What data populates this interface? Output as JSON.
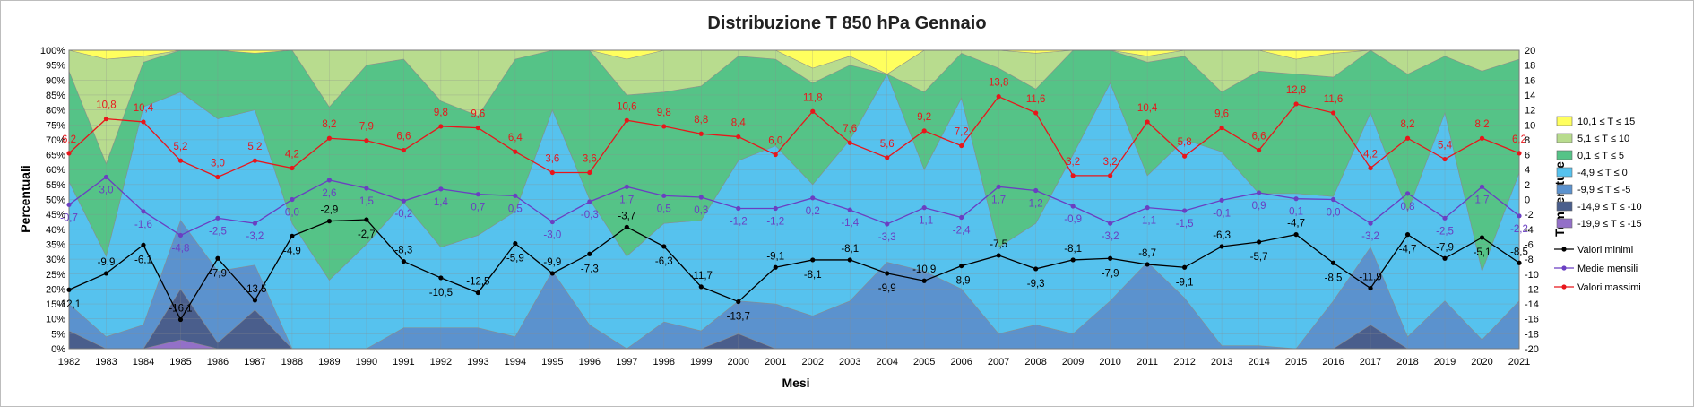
{
  "chart_data": {
    "type": "area",
    "title": "Distribuzione T 850 hPa Gennaio",
    "xlabel": "Mesi",
    "ylabel_left": "Percentuali",
    "ylabel_right": "Temperature",
    "categories": [
      "1982",
      "1983",
      "1984",
      "1985",
      "1986",
      "1987",
      "1988",
      "1989",
      "1990",
      "1991",
      "1992",
      "1993",
      "1994",
      "1995",
      "1996",
      "1997",
      "1998",
      "1999",
      "2000",
      "2001",
      "2002",
      "2003",
      "2004",
      "2005",
      "2006",
      "2007",
      "2008",
      "2009",
      "2010",
      "2011",
      "2012",
      "2013",
      "2014",
      "2015",
      "2016",
      "2017",
      "2018",
      "2019",
      "2020",
      "2021"
    ],
    "left_axis": {
      "min": 0,
      "max": 100,
      "step": 5,
      "unit": "%"
    },
    "right_axis": {
      "min": -20,
      "max": 20,
      "step": 2
    },
    "stacked_series": [
      {
        "name": "-19,9 ≤ T ≤ -15",
        "color": "#9370C8",
        "values": [
          0,
          0,
          0,
          3,
          0,
          0,
          0,
          0,
          0,
          0,
          0,
          0,
          0,
          0,
          0,
          0,
          0,
          0,
          0,
          0,
          0,
          0,
          0,
          0,
          0,
          0,
          0,
          0,
          0,
          0,
          0,
          0,
          0,
          0,
          0,
          0,
          0,
          0,
          0,
          0
        ]
      },
      {
        "name": "-14,9 ≤ T ≤ -10",
        "color": "#4A5E8C",
        "values": [
          6,
          0,
          0,
          17,
          2,
          13,
          0,
          0,
          0,
          0,
          0,
          0,
          0,
          0,
          0,
          0,
          0,
          0,
          5,
          0,
          0,
          0,
          0,
          0,
          0,
          0,
          0,
          0,
          0,
          0,
          0,
          0,
          0,
          0,
          0,
          8,
          0,
          0,
          0,
          0
        ]
      },
      {
        "name": "-9,9 ≤ T ≤ -5",
        "color": "#5B92CE",
        "values": [
          9,
          4,
          8,
          23,
          24,
          15,
          0,
          0,
          0,
          7,
          7,
          7,
          4,
          26,
          8,
          0,
          9,
          6,
          11,
          15,
          11,
          16,
          29,
          26,
          20,
          5,
          8,
          5,
          16,
          29,
          17,
          1,
          1,
          0,
          16,
          26,
          4,
          16,
          3,
          16
        ]
      },
      {
        "name": "-4,9 ≤ T ≤ 0",
        "color": "#56C2EE",
        "values": [
          41,
          27,
          73,
          43,
          51,
          52,
          42,
          23,
          35,
          42,
          27,
          31,
          42,
          54,
          42,
          31,
          33,
          37,
          47,
          53,
          44,
          54,
          63,
          34,
          64,
          29,
          34,
          60,
          73,
          29,
          53,
          65,
          51,
          52,
          35,
          45,
          42,
          63,
          23,
          43
        ]
      },
      {
        "name": "0,1 ≤ T ≤ 5",
        "color": "#55C387",
        "values": [
          37,
          31,
          15,
          33,
          23,
          19,
          58,
          58,
          60,
          48,
          49,
          40,
          51,
          20,
          50,
          54,
          44,
          45,
          35,
          29,
          34,
          25,
          0,
          26,
          15,
          60,
          45,
          35,
          11,
          38,
          28,
          20,
          41,
          40,
          40,
          21,
          46,
          19,
          67,
          38
        ]
      },
      {
        "name": "5,1 ≤ T ≤ 10",
        "color": "#B8DC8E",
        "values": [
          7,
          35,
          2,
          1,
          0,
          0,
          0,
          19,
          5,
          3,
          17,
          22,
          3,
          0,
          0,
          12,
          14,
          12,
          2,
          3,
          5,
          3,
          0,
          14,
          1,
          6,
          12,
          0,
          0,
          2,
          2,
          14,
          7,
          5,
          8,
          0,
          8,
          2,
          7,
          3
        ]
      },
      {
        "name": "10,1 ≤ T ≤ 15",
        "color": "#FFFF5E",
        "values": [
          0,
          3,
          2,
          0,
          0,
          1,
          0,
          0,
          0,
          0,
          0,
          0,
          0,
          0,
          0,
          3,
          0,
          0,
          0,
          0,
          6,
          2,
          8,
          0,
          0,
          0,
          1,
          0,
          0,
          2,
          0,
          0,
          0,
          3,
          1,
          0,
          0,
          0,
          0,
          0
        ]
      }
    ],
    "line_series": [
      {
        "name": "Valori massimi",
        "color": "#E8161B",
        "label_color": "#E8161B",
        "values": [
          6.2,
          10.8,
          10.4,
          5.2,
          3.0,
          5.2,
          4.2,
          8.2,
          7.9,
          6.6,
          9.8,
          9.6,
          6.4,
          3.6,
          3.6,
          10.6,
          9.8,
          8.8,
          8.4,
          6.0,
          11.8,
          7.6,
          5.6,
          9.2,
          7.2,
          13.8,
          11.6,
          3.2,
          3.2,
          10.4,
          5.8,
          9.6,
          6.6,
          12.8,
          11.6,
          4.2,
          8.2,
          5.4,
          8.2,
          6.2
        ],
        "labels": [
          "6,2",
          "10,8",
          "10,4",
          "5,2",
          "3,0",
          "5,2",
          "4,2",
          "8,2",
          "7,9",
          "6,6",
          "9,8",
          "9,6",
          "6,4",
          "3,6",
          "3,6",
          "10,6",
          "9,8",
          "8,8",
          "8,4",
          "6,0",
          "11,8",
          "7,6",
          "5,6",
          "9,2",
          "7,2",
          "13,8",
          "11,6",
          "3,2",
          "3,2",
          "10,4",
          "5,8",
          "9,6",
          "6,6",
          "12,8",
          "11,6",
          "4,2",
          "8,2",
          "5,4",
          "8,2",
          "6,2"
        ]
      },
      {
        "name": "Medie mensili",
        "color": "#6A3FC2",
        "label_color": "#6A3FC2",
        "values": [
          -0.7,
          3.0,
          -1.6,
          -4.8,
          -2.5,
          -3.2,
          0.0,
          2.6,
          1.5,
          -0.2,
          1.4,
          0.7,
          0.5,
          -3.0,
          -0.3,
          1.7,
          0.5,
          0.3,
          -1.2,
          -1.2,
          0.2,
          -1.4,
          -3.3,
          -1.1,
          -2.4,
          1.7,
          1.2,
          -0.9,
          -3.2,
          -1.1,
          -1.5,
          -0.1,
          0.9,
          0.1,
          0.0,
          -3.2,
          0.8,
          -2.5,
          1.7,
          -2.2
        ],
        "labels": [
          "-0,7",
          "3,0",
          "-1,6",
          "-4,8",
          "-2,5",
          "-3,2",
          "0,0",
          "2,6",
          "1,5",
          "-0,2",
          "1,4",
          "0,7",
          "0,5",
          "-3,0",
          "-0,3",
          "1,7",
          "0,5",
          "0,3",
          "-1,2",
          "-1,2",
          "0,2",
          "-1,4",
          "-3,3",
          "-1,1",
          "-2,4",
          "1,7",
          "1,2",
          "-0,9",
          "-3,2",
          "-1,1",
          "-1,5",
          "-0,1",
          "0,9",
          "0,1",
          "0,0",
          "-3,2",
          "0,8",
          "-2,5",
          "1,7",
          "-2,2"
        ]
      },
      {
        "name": "Valori minimi",
        "color": "#000000",
        "label_color": "#000000",
        "values": [
          -12.1,
          -9.9,
          -6.1,
          -16.1,
          -7.9,
          -13.5,
          -4.9,
          -2.9,
          -2.7,
          -8.3,
          -10.5,
          -12.5,
          -5.9,
          -9.9,
          -7.3,
          -3.7,
          -6.3,
          -11.7,
          -13.7,
          -9.1,
          -8.1,
          -8.1,
          -9.9,
          -10.9,
          -8.9,
          -7.5,
          -9.3,
          -8.1,
          -7.9,
          -8.7,
          -9.1,
          -6.3,
          -5.7,
          -4.7,
          -8.5,
          -11.9,
          -4.7,
          -7.9,
          -5.1,
          -8.5
        ],
        "labels": [
          "-12,1",
          "-9,9",
          "-6,1",
          "-16,1",
          "-7,9",
          "-13,5",
          "-4,9",
          "-2,9",
          "-2,7",
          "-8,3",
          "-10,5",
          "-12,5",
          "-5,9",
          "-9,9",
          "-7,3",
          "-3,7",
          "-6,3",
          "-11,7",
          "-13,7",
          "-9,1",
          "-8,1",
          "-8,1",
          "-9,9",
          "-10,9",
          "-8,9",
          "-7,5",
          "-9,3",
          "-8,1",
          "-7,9",
          "-8,7",
          "-9,1",
          "-6,3",
          "-5,7",
          "-4,7",
          "-8,5",
          "-11,9",
          "-4,7",
          "-7,9",
          "-5,1",
          "-8,5"
        ]
      }
    ],
    "legend": {
      "placement": "right",
      "area_order": [
        "10,1 ≤ T ≤ 15",
        "5,1 ≤ T ≤ 10",
        "0,1 ≤ T ≤ 5",
        "-4,9 ≤ T ≤ 0",
        "-9,9 ≤ T ≤ -5",
        "-14,9 ≤ T ≤ -10",
        "-19,9 ≤ T ≤ -15"
      ],
      "line_order": [
        "Valori minimi",
        "Medie mensili",
        "Valori massimi"
      ]
    },
    "grid": true
  }
}
